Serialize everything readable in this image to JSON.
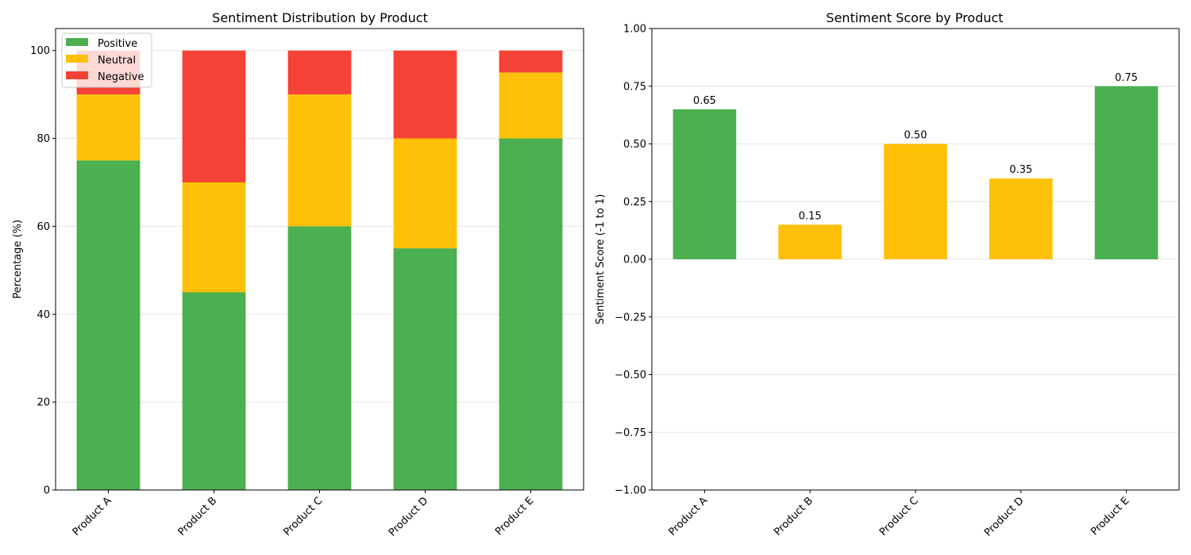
{
  "chart_data": [
    {
      "type": "bar",
      "stacked": true,
      "title": "Sentiment Distribution by Product",
      "xlabel": "",
      "ylabel": "Percentage (%)",
      "categories": [
        "Product A",
        "Product B",
        "Product C",
        "Product D",
        "Product E"
      ],
      "series": [
        {
          "name": "Positive",
          "color": "#4caf50",
          "values": [
            75,
            45,
            60,
            55,
            80
          ]
        },
        {
          "name": "Neutral",
          "color": "#ffc107",
          "values": [
            15,
            25,
            30,
            25,
            15
          ]
        },
        {
          "name": "Negative",
          "color": "#f44336",
          "values": [
            10,
            30,
            10,
            20,
            5
          ]
        }
      ],
      "ylim": [
        0,
        105
      ],
      "yticks": [
        0,
        20,
        40,
        60,
        80,
        100
      ],
      "ytick_labels": [
        "0",
        "20",
        "40",
        "60",
        "80",
        "100"
      ],
      "grid": "y",
      "legend": "upper-left"
    },
    {
      "type": "bar",
      "title": "Sentiment Score by Product",
      "xlabel": "",
      "ylabel": "Sentiment Score (-1 to 1)",
      "categories": [
        "Product A",
        "Product B",
        "Product C",
        "Product D",
        "Product E"
      ],
      "values": [
        0.65,
        0.15,
        0.5,
        0.35,
        0.75
      ],
      "value_labels": [
        "0.65",
        "0.15",
        "0.50",
        "0.35",
        "0.75"
      ],
      "bar_colors": [
        "#4caf50",
        "#ffc107",
        "#ffc107",
        "#ffc107",
        "#4caf50"
      ],
      "ylim": [
        -1,
        1
      ],
      "yticks": [
        -1,
        -0.75,
        -0.5,
        -0.25,
        0,
        0.25,
        0.5,
        0.75,
        1
      ],
      "ytick_labels": [
        "−1.00",
        "−0.75",
        "−0.50",
        "−0.25",
        "0.00",
        "0.25",
        "0.50",
        "0.75",
        "1.00"
      ],
      "grid": "y"
    }
  ]
}
